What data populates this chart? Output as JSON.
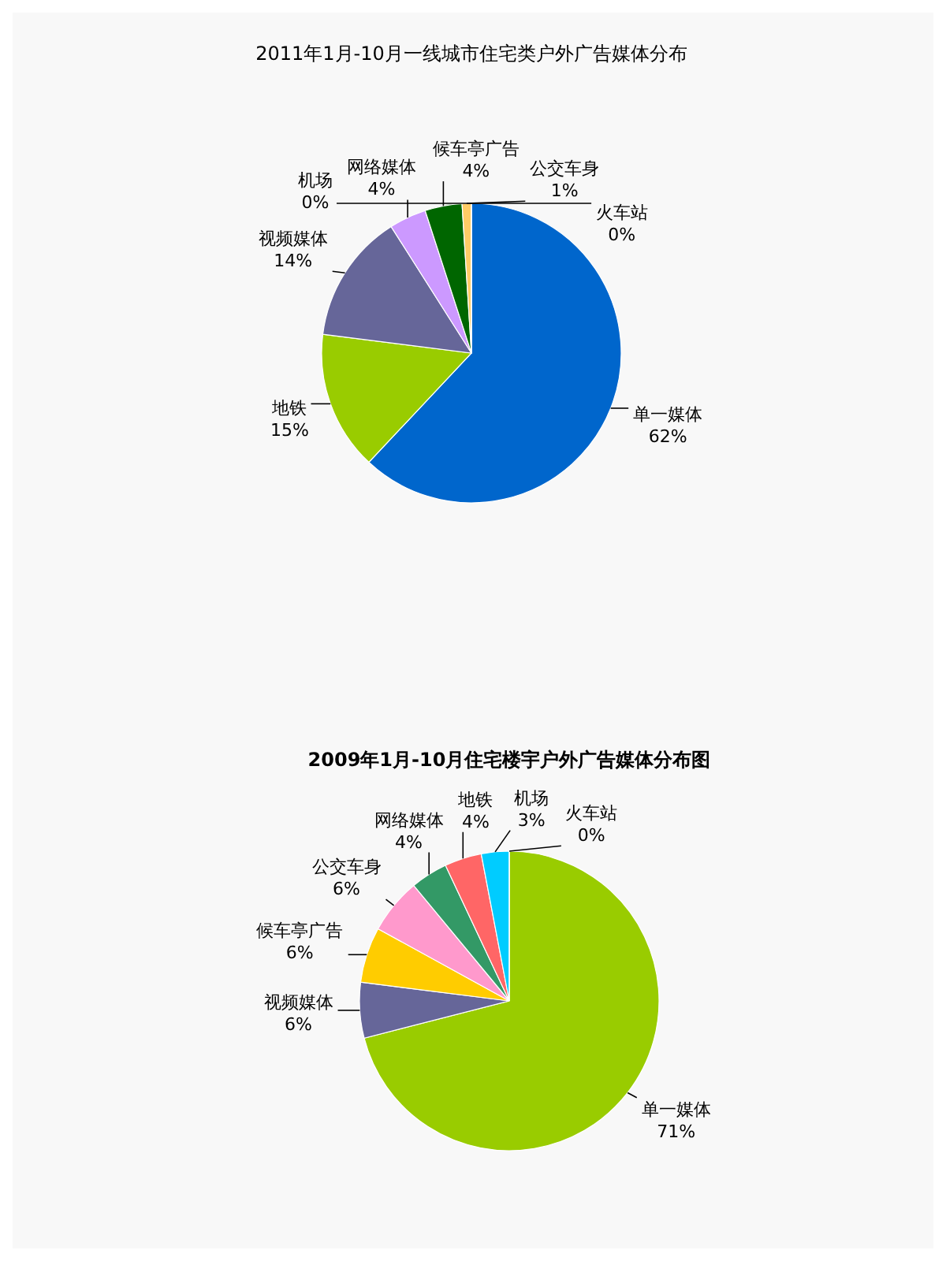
{
  "chart_data": [
    {
      "type": "pie",
      "title": "2011年1月-10月一线城市住宅类户外广告媒体分布",
      "categories": [
        "单一媒体",
        "地铁",
        "视频媒体",
        "网络媒体",
        "候车亭广告",
        "公交车身",
        "火车站",
        "机场"
      ],
      "values": [
        62,
        15,
        14,
        4,
        4,
        1,
        0,
        0
      ],
      "value_labels": [
        "62%",
        "15%",
        "14%",
        "4%",
        "4%",
        "1%",
        "0%",
        "0%"
      ],
      "colors": [
        "#0066cc",
        "#99cc00",
        "#666699",
        "#cc99ff",
        "#006600",
        "#ffcc66",
        "#333333",
        "#000000"
      ]
    },
    {
      "type": "pie",
      "title": "2009年1月-10月住宅楼宇户外广告媒体分布图",
      "categories": [
        "单一媒体",
        "视频媒体",
        "候车亭广告",
        "公交车身",
        "网络媒体",
        "地铁",
        "机场",
        "火车站"
      ],
      "values": [
        71,
        6,
        6,
        6,
        4,
        4,
        3,
        0
      ],
      "value_labels": [
        "71%",
        "6%",
        "6%",
        "6%",
        "4%",
        "4%",
        "3%",
        "0%"
      ],
      "colors": [
        "#99cc00",
        "#666699",
        "#ffcc00",
        "#ff99cc",
        "#339966",
        "#ff6666",
        "#00ccff",
        "#cc3366"
      ]
    }
  ]
}
